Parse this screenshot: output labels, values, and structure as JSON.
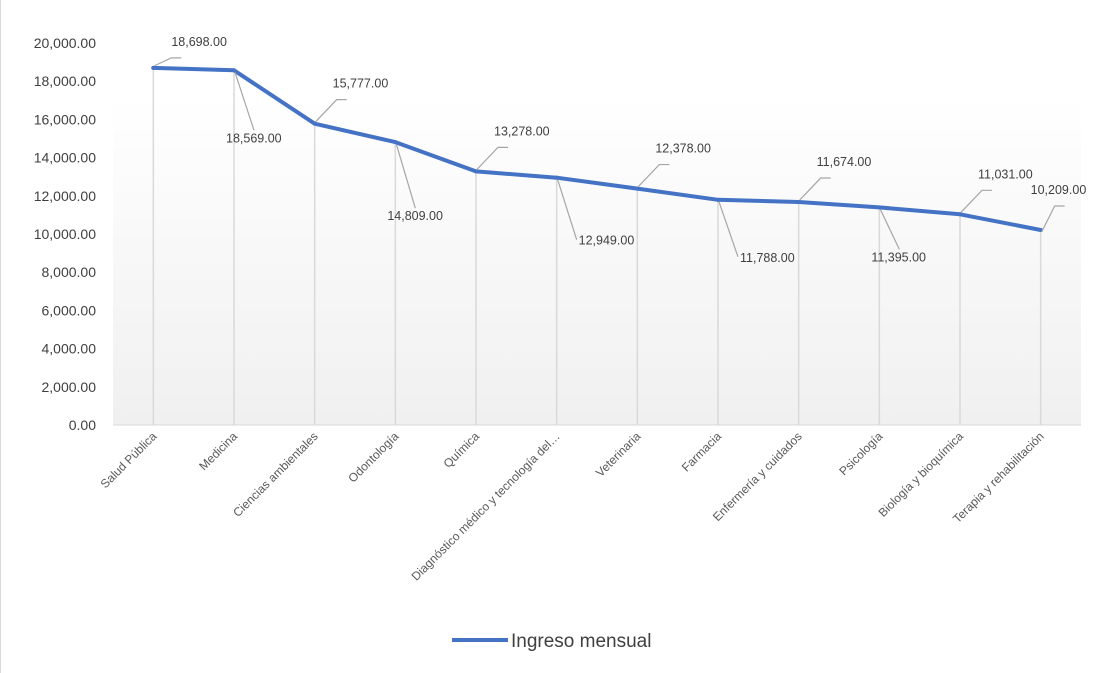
{
  "chart_data": {
    "type": "line",
    "title": "",
    "xlabel": "",
    "ylabel": "",
    "categories": [
      "Salud Pública",
      "Medicina",
      "Ciencias ambientales",
      "Odontología",
      "Química",
      "Diagnóstico médico y tecnología del…",
      "Veterinaria",
      "Farmacia",
      "Enfermería y cuidados",
      "Psicología",
      "Biología y bioquímica",
      "Terapia y rehabilitación"
    ],
    "series": [
      {
        "name": "Ingreso mensual",
        "color": "#4472c4",
        "values": [
          18698,
          18569,
          15777,
          14809,
          13278,
          12949,
          12378,
          11788,
          11674,
          11395,
          11031,
          10209
        ],
        "data_labels": [
          "18,698.00",
          "18,569.00",
          "15,777.00",
          "14,809.00",
          "13,278.00",
          "12,949.00",
          "12,378.00",
          "11,788.00",
          "11,674.00",
          "11,395.00",
          "11,031.00",
          "10,209.00"
        ]
      }
    ],
    "ylim": [
      0,
      20000
    ],
    "y_ticks": [
      0,
      2000,
      4000,
      6000,
      8000,
      10000,
      12000,
      14000,
      16000,
      18000,
      20000
    ],
    "y_tick_labels": [
      "0.00",
      "2,000.00",
      "4,000.00",
      "6,000.00",
      "8,000.00",
      "10,000.00",
      "12,000.00",
      "14,000.00",
      "16,000.00",
      "18,000.00",
      "20,000.00"
    ],
    "drop_lines": true,
    "grid": false,
    "legend": {
      "position": "bottom",
      "entries": [
        "Ingreso mensual"
      ]
    }
  }
}
